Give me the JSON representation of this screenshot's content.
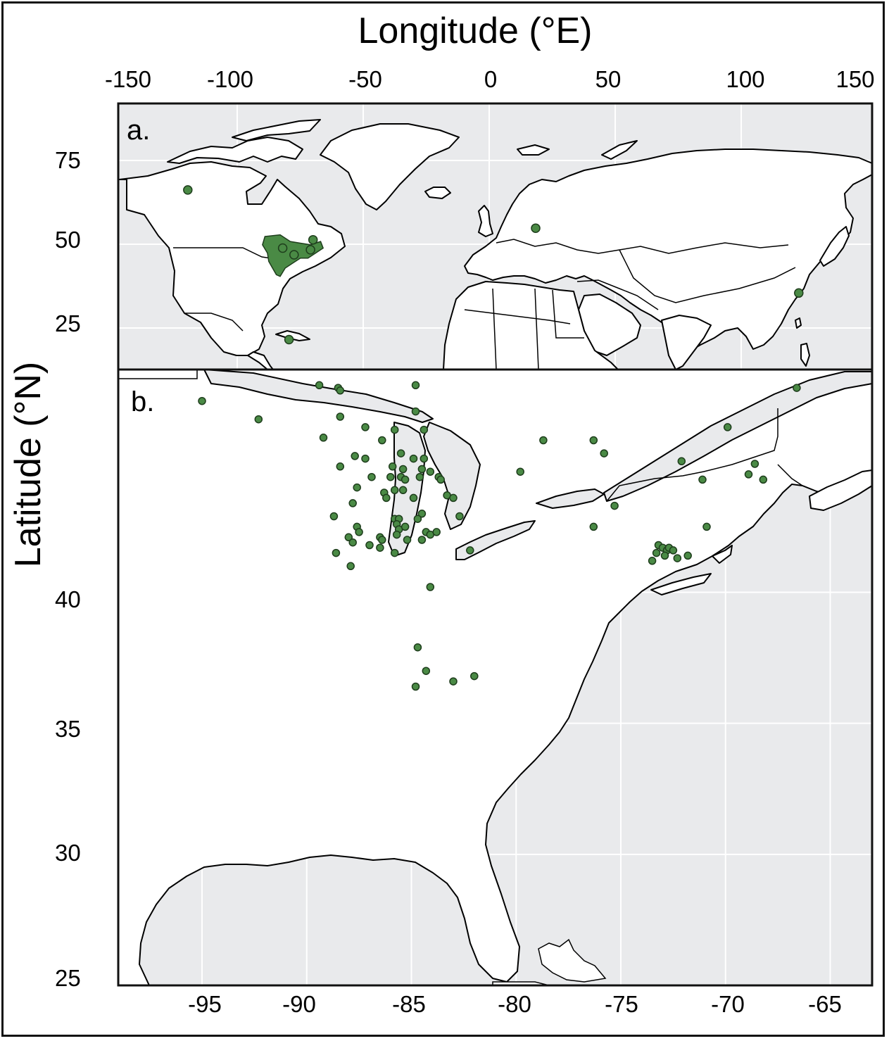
{
  "axes": {
    "x_title": "Longitude (°E)",
    "y_title": "Latitude (°N)"
  },
  "panel_a": {
    "label": "a.",
    "x_ticks": [
      "-150",
      "-100",
      "-50",
      "0",
      "50",
      "100",
      "150"
    ],
    "y_ticks": [
      "75",
      "50",
      "25"
    ],
    "x_range": [
      -148,
      150
    ],
    "y_range": [
      8,
      88
    ],
    "points": [
      [
        -120.5,
        62
      ],
      [
        -83,
        44.5
      ],
      [
        -78.5,
        42.5
      ],
      [
        -72,
        44
      ],
      [
        -71,
        47
      ],
      [
        -80.5,
        17
      ],
      [
        17,
        50.5
      ],
      [
        121,
        31
      ]
    ],
    "cluster_region": [
      [
        -90,
        48
      ],
      [
        -84,
        48.5
      ],
      [
        -80,
        46.5
      ],
      [
        -76,
        46
      ],
      [
        -72,
        45.5
      ],
      [
        -68,
        46.5
      ],
      [
        -67,
        44.5
      ],
      [
        -70,
        43
      ],
      [
        -73,
        41.5
      ],
      [
        -76,
        41.5
      ],
      [
        -79,
        40
      ],
      [
        -82,
        38.5
      ],
      [
        -84,
        36
      ],
      [
        -85.5,
        36.5
      ],
      [
        -87,
        38.5
      ],
      [
        -88.5,
        40.5
      ],
      [
        -89,
        43
      ],
      [
        -91,
        45.5
      ],
      [
        -90,
        48
      ]
    ]
  },
  "panel_b": {
    "label": "b.",
    "x_ticks": [
      "-95",
      "-90",
      "-85",
      "-80",
      "-75",
      "-70",
      "-65"
    ],
    "y_ticks": [
      "40",
      "35",
      "30",
      "25"
    ],
    "x_range": [
      -99,
      -63
    ],
    "y_range": [
      25,
      48.5
    ],
    "points": [
      [
        -95,
        47.3
      ],
      [
        -92.3,
        46.6
      ],
      [
        -89.4,
        47.9
      ],
      [
        -88.5,
        47.8
      ],
      [
        -88.4,
        47.7
      ],
      [
        -89.2,
        45.9
      ],
      [
        -88.4,
        46.7
      ],
      [
        -87.2,
        46.3
      ],
      [
        -88.4,
        44.8
      ],
      [
        -87.7,
        45.2
      ],
      [
        -87.2,
        45.1
      ],
      [
        -86.9,
        44.4
      ],
      [
        -86.4,
        45.8
      ],
      [
        -85.8,
        46.2
      ],
      [
        -84.8,
        46.9
      ],
      [
        -84.8,
        47.9
      ],
      [
        -84.4,
        46.2
      ],
      [
        -85.5,
        45.3
      ],
      [
        -84.9,
        45.1
      ],
      [
        -84.4,
        45.1
      ],
      [
        -84.5,
        44.7
      ],
      [
        -84.1,
        44.6
      ],
      [
        -84.6,
        44.4
      ],
      [
        -85.9,
        44.8
      ],
      [
        -86.0,
        44.4
      ],
      [
        -85.4,
        44.7
      ],
      [
        -85.5,
        44.4
      ],
      [
        -85.3,
        44.3
      ],
      [
        -83.7,
        44.4
      ],
      [
        -83.6,
        44.3
      ],
      [
        -87.6,
        44.0
      ],
      [
        -86.3,
        43.8
      ],
      [
        -86.2,
        43.6
      ],
      [
        -85.8,
        43.9
      ],
      [
        -85.4,
        43.9
      ],
      [
        -84.9,
        43.6
      ],
      [
        -84.5,
        43.0
      ],
      [
        -83.3,
        43.7
      ],
      [
        -83.0,
        43.6
      ],
      [
        -82.7,
        42.9
      ],
      [
        -88.7,
        42.9
      ],
      [
        -87.8,
        43.4
      ],
      [
        -87.6,
        42.5
      ],
      [
        -87.5,
        42.3
      ],
      [
        -88.0,
        42.1
      ],
      [
        -87.8,
        41.9
      ],
      [
        -87.0,
        41.8
      ],
      [
        -86.5,
        42.1
      ],
      [
        -86.4,
        42.0
      ],
      [
        -85.8,
        42.8
      ],
      [
        -85.6,
        42.8
      ],
      [
        -85.7,
        42.6
      ],
      [
        -85.6,
        42.4
      ],
      [
        -85.3,
        42.5
      ],
      [
        -84.7,
        42.8
      ],
      [
        -84.3,
        42.3
      ],
      [
        -84.1,
        42.2
      ],
      [
        -83.8,
        42.3
      ],
      [
        -85.7,
        42.2
      ],
      [
        -85.2,
        42.0
      ],
      [
        -84.5,
        42.0
      ],
      [
        -88.6,
        41.5
      ],
      [
        -87.9,
        41.0
      ],
      [
        -82.2,
        41.6
      ],
      [
        -86.5,
        41.7
      ],
      [
        -85.8,
        41.5
      ],
      [
        -84.1,
        40.2
      ],
      [
        -84.7,
        37.9
      ],
      [
        -84.3,
        37.0
      ],
      [
        -84.8,
        36.4
      ],
      [
        -83.0,
        36.6
      ],
      [
        -82.0,
        36.8
      ],
      [
        -79.8,
        44.6
      ],
      [
        -78.7,
        45.8
      ],
      [
        -76.3,
        45.8
      ],
      [
        -75.8,
        45.3
      ],
      [
        -75.3,
        43.3
      ],
      [
        -76.3,
        42.5
      ],
      [
        -72.1,
        45.0
      ],
      [
        -71.1,
        44.3
      ],
      [
        -69.9,
        46.3
      ],
      [
        -70.9,
        42.5
      ],
      [
        -68.9,
        44.5
      ],
      [
        -68.6,
        44.9
      ],
      [
        -68.2,
        44.3
      ],
      [
        -66.6,
        47.8
      ],
      [
        -73.2,
        41.8
      ],
      [
        -73.0,
        41.7
      ],
      [
        -72.8,
        41.6
      ],
      [
        -72.7,
        41.7
      ],
      [
        -72.5,
        41.6
      ],
      [
        -73.3,
        41.5
      ],
      [
        -72.9,
        41.4
      ],
      [
        -72.3,
        41.3
      ],
      [
        -71.8,
        41.4
      ],
      [
        -73.5,
        41.2
      ]
    ],
    "x_grid": [
      -95,
      -90,
      -85,
      -80,
      -75,
      -70,
      -65
    ],
    "y_grid": [
      45,
      40,
      35,
      30,
      25
    ]
  },
  "colors": {
    "ocean": "#e9eaec",
    "land": "#ffffff",
    "border": "#000000",
    "point_fill": "#4a8a45",
    "point_stroke": "#1e3d1c",
    "grid": "#ffffff"
  }
}
